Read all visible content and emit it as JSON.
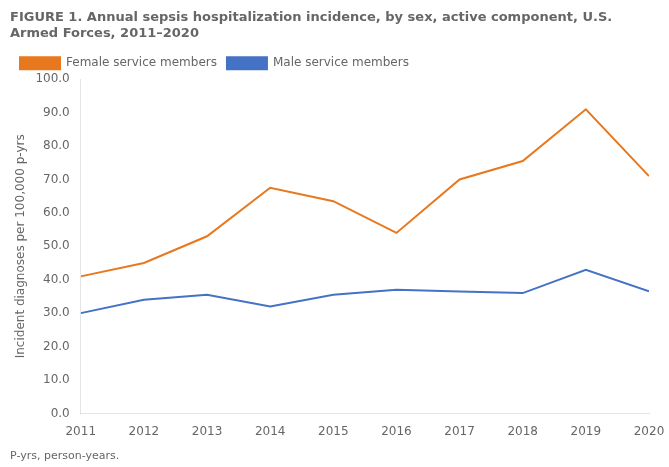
{
  "chart_data": {
    "type": "line",
    "title": "FIGURE 1. Annual sepsis hospitalization incidence, by sex, active component, U.S. Armed Forces, 2011–2020",
    "annotations": [
      "P-yrs, person-years."
    ],
    "y_label": "Incident diagnoses per 100,000 p-yrs",
    "x": [
      2011,
      2012,
      2013,
      2014,
      2015,
      2016,
      2017,
      2018,
      2019,
      2020
    ],
    "series": [
      {
        "name": "Female service members",
        "color": "#E8781E",
        "values": [
          41.0,
          45.0,
          53.0,
          67.5,
          63.5,
          54.0,
          70.0,
          75.5,
          91.0,
          71.0
        ]
      },
      {
        "name": "Male service members",
        "color": "#4472C4",
        "values": [
          30.0,
          34.0,
          35.5,
          32.0,
          35.5,
          37.0,
          36.5,
          36.0,
          43.0,
          36.5
        ]
      }
    ],
    "xlim": [
      2011,
      2020
    ],
    "xticks": [
      2011,
      2012,
      2013,
      2014,
      2015,
      2016,
      2017,
      2018,
      2019,
      2020
    ],
    "ylim": [
      0,
      100
    ],
    "yticks": [
      {
        "value": 0,
        "label": "0.0"
      },
      {
        "value": 10,
        "label": "10.0"
      },
      {
        "value": 20,
        "label": "20.0"
      },
      {
        "value": 30,
        "label": "30.0"
      },
      {
        "value": 40,
        "label": "40.0"
      },
      {
        "value": 50,
        "label": "50.0"
      },
      {
        "value": 60,
        "label": "60.0"
      },
      {
        "value": 70,
        "label": "70.0"
      },
      {
        "value": 80,
        "label": "80.0"
      },
      {
        "value": 90,
        "label": "90.0"
      },
      {
        "value": 100,
        "label": "100.0"
      }
    ],
    "grid": false,
    "legend": "upper left"
  }
}
